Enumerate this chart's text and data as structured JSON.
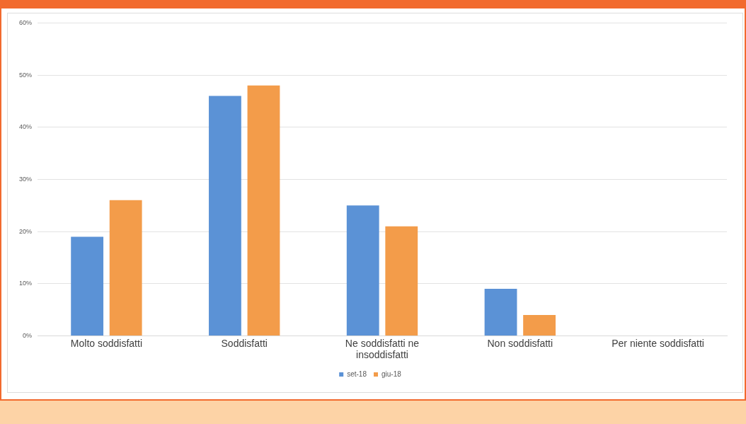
{
  "chart_data": {
    "type": "bar",
    "categories": [
      "Molto soddisfatti",
      "Soddisfatti",
      "Ne soddisfatti ne insoddisfatti",
      "Non soddisfatti",
      "Per niente soddisfatti"
    ],
    "series": [
      {
        "name": "set-18",
        "color": "#5b92d6",
        "values": [
          19,
          46,
          25,
          9,
          0
        ]
      },
      {
        "name": "giu-18",
        "color": "#f39c4a",
        "values": [
          26,
          48,
          21,
          4,
          0
        ]
      }
    ],
    "ylim": [
      0,
      60
    ],
    "yticks": [
      {
        "value": 0,
        "label": "0%"
      },
      {
        "value": 10,
        "label": "10%"
      },
      {
        "value": 20,
        "label": "20%"
      },
      {
        "value": 30,
        "label": "30%"
      },
      {
        "value": 40,
        "label": "40%"
      },
      {
        "value": 50,
        "label": "50%"
      },
      {
        "value": 60,
        "label": "60%"
      }
    ],
    "grid": "y",
    "legend": "bottom"
  }
}
